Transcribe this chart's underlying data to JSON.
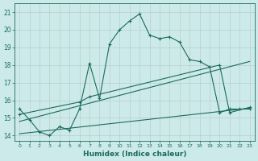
{
  "title": "",
  "xlabel": "Humidex (Indice chaleur)",
  "ylabel": "",
  "bg_color": "#cdeaea",
  "grid_color": "#b8b8b8",
  "line_color": "#1a6b5a",
  "xlim": [
    -0.5,
    23.5
  ],
  "ylim": [
    13.7,
    21.5
  ],
  "yticks": [
    14,
    15,
    16,
    17,
    18,
    19,
    20,
    21
  ],
  "xticks": [
    0,
    1,
    2,
    3,
    4,
    5,
    6,
    7,
    8,
    9,
    10,
    11,
    12,
    13,
    14,
    15,
    16,
    17,
    18,
    19,
    20,
    21,
    22,
    23
  ],
  "curve1_x": [
    0,
    1,
    2,
    3,
    4,
    5,
    6,
    7,
    8,
    9,
    10,
    11,
    12,
    13,
    14,
    15,
    16,
    17,
    18,
    19,
    20,
    21,
    22,
    23
  ],
  "curve1_y": [
    15.5,
    14.9,
    14.2,
    14.0,
    14.5,
    14.3,
    15.5,
    18.1,
    16.1,
    19.2,
    20.0,
    20.5,
    20.9,
    19.7,
    19.5,
    19.6,
    19.3,
    18.3,
    18.2,
    17.9,
    15.3,
    15.5,
    15.5,
    15.5
  ],
  "curve2_x": [
    0,
    6,
    7,
    20,
    21,
    23
  ],
  "curve2_y": [
    15.2,
    15.9,
    16.2,
    18.0,
    15.3,
    15.6
  ],
  "curve3_x": [
    0,
    23
  ],
  "curve3_y": [
    14.8,
    18.2
  ],
  "curve4_x": [
    0,
    23
  ],
  "curve4_y": [
    14.1,
    15.55
  ],
  "figsize": [
    3.2,
    2.0
  ],
  "dpi": 100
}
